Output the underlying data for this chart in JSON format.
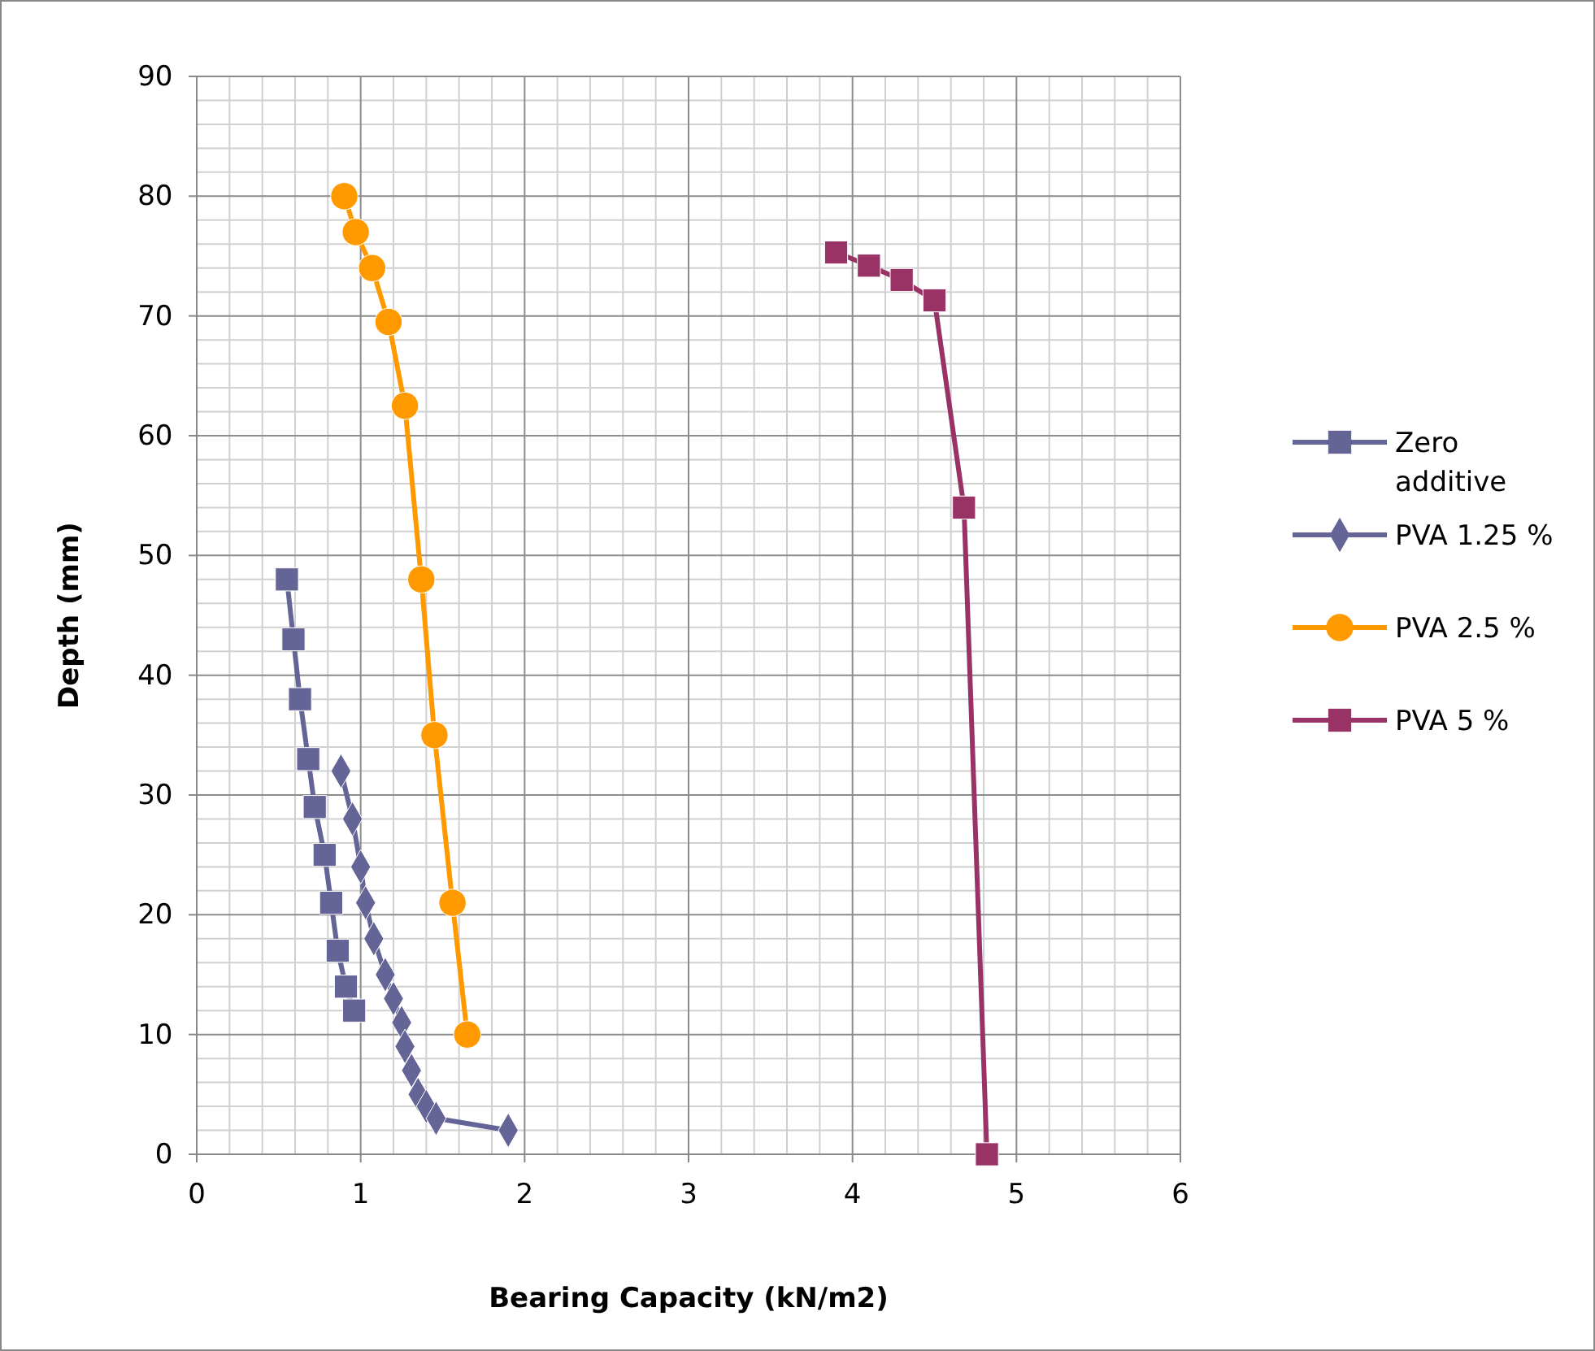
{
  "chart_data": {
    "type": "line",
    "xlabel": "Bearing Capacity (kN/m2)",
    "ylabel": "Depth (mm)",
    "xlim": [
      0,
      6
    ],
    "xticks": [
      0,
      1,
      2,
      3,
      4,
      5,
      6
    ],
    "ylim": [
      0,
      90
    ],
    "yticks": [
      0,
      10,
      20,
      30,
      40,
      50,
      60,
      70,
      80,
      90
    ],
    "grid": true,
    "legend": "right",
    "series": [
      {
        "name": "Zero additive",
        "color": "#646496",
        "marker": "square",
        "x": [
          0.55,
          0.59,
          0.63,
          0.68,
          0.72,
          0.78,
          0.82,
          0.86,
          0.91,
          0.96
        ],
        "values": [
          48,
          43,
          38,
          33,
          29,
          25,
          21,
          17,
          14,
          12
        ]
      },
      {
        "name": "PVA 1.25 %",
        "color": "#646496",
        "marker": "diamond",
        "x": [
          0.88,
          0.95,
          1.0,
          1.03,
          1.08,
          1.15,
          1.2,
          1.25,
          1.27,
          1.31,
          1.35,
          1.4,
          1.46,
          1.9
        ],
        "values": [
          32,
          28,
          24,
          21,
          18,
          15,
          13,
          11,
          9,
          7,
          5,
          4,
          3,
          2
        ]
      },
      {
        "name": "PVA 2.5 %",
        "color": "#ff9900",
        "marker": "circle",
        "x": [
          0.9,
          0.97,
          1.07,
          1.17,
          1.27,
          1.37,
          1.45,
          1.56,
          1.65
        ],
        "values": [
          80,
          77,
          74,
          69.5,
          62.5,
          48,
          35,
          21,
          10
        ]
      },
      {
        "name": "PVA 5 %",
        "color": "#993366",
        "marker": "square",
        "x": [
          3.9,
          4.1,
          4.3,
          4.5,
          4.68,
          4.82
        ],
        "values": [
          75.3,
          74.2,
          73,
          71.3,
          54,
          0
        ]
      }
    ]
  }
}
